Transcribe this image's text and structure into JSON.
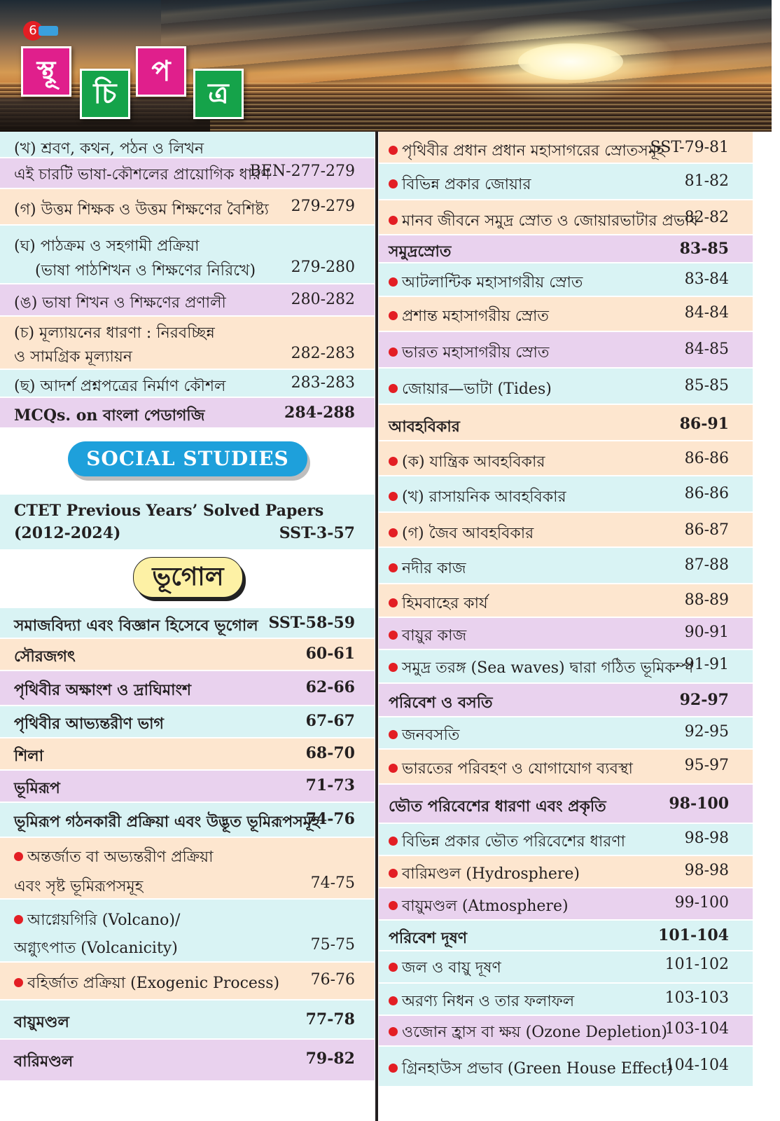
{
  "header": {
    "page_number": "6",
    "title_tiles": [
      "স্থূ",
      "চি",
      "প",
      "ত্র"
    ]
  },
  "left": {
    "rows_top": [
      {
        "text": "(খ) শ্রবণ, কথন, পঠন ও লিখন",
        "page": ""
      },
      {
        "text": "এই চারটি ভাষা-কৌশলের প্রায়োগিক ধারণ",
        "page": "BEN-277-279"
      },
      {
        "text": "(গ) উত্তম শিক্ষক ও উত্তম শিক্ষণের বৈশিষ্ট্য",
        "page": "279-279"
      },
      {
        "text": "(ঘ) পাঠক্রম ও সহগামী প্রক্রিয়া",
        "page": ""
      },
      {
        "text": "(ভাষা পাঠশিখন ও শিক্ষণের নিরিখে)",
        "page": "279-280"
      },
      {
        "text": "(ঙ) ভাষা শিখন ও শিক্ষণের প্রণালী",
        "page": "280-282"
      },
      {
        "text": "(চ) মূল্যায়নের ধারণা : নিরবচ্ছিন্ন",
        "page": ""
      },
      {
        "text": "ও সামগ্রিক মূল্যায়ন",
        "page": "282-283"
      },
      {
        "text": "(ছ) আদর্শ প্রশ্নপত্রের নির্মাণ কৌশল",
        "page": "283-283"
      },
      {
        "text": "MCQs. on বাংলা পেডাগজি",
        "page": "284-288"
      }
    ],
    "section_banner": "SOCIAL STUDIES",
    "ctet": {
      "line1": "CTET Previous Years’ Solved Papers",
      "line2": "(2012-2024)",
      "page": "SST-3-57"
    },
    "subject_banner": "ভূগোল",
    "rows_bottom": [
      {
        "text": "সমাজবিদ্যা এবং বিজ্ঞান হিসেবে ভূগোল",
        "page": "SST-58-59"
      },
      {
        "text": "সৌরজগৎ",
        "page": "60-61"
      },
      {
        "text": "পৃথিবীর অক্ষাংশ ও দ্রাঘিমাংশ",
        "page": "62-66"
      },
      {
        "text": "পৃথিবীর আভ্যন্তরীণ ভাগ",
        "page": "67-67"
      },
      {
        "text": "শিলা",
        "page": "68-70"
      },
      {
        "text": "ভূমিরূপ",
        "page": "71-73"
      },
      {
        "text": "ভূমিরূপ গঠনকারী প্রক্রিয়া এবং উদ্ভূত ভূমিরূপসমূহ",
        "page": "74-76"
      },
      {
        "text": "অন্তর্জাত বা অভ্যন্তরীণ প্রক্রিয়া",
        "page": ""
      },
      {
        "text": "এবং সৃষ্ট ভূমিরূপসমূহ",
        "page": "74-75"
      },
      {
        "text": "আগ্নেয়গিরি (Volcano)/",
        "page": ""
      },
      {
        "text": "অগ্ন্যুৎপাত (Volcanicity)",
        "page": "75-75"
      },
      {
        "text": "বহির্জাত প্রক্রিয়া (Exogenic Process)",
        "page": "76-76"
      },
      {
        "text": "বায়ুমণ্ডল",
        "page": "77-78"
      },
      {
        "text": "বারিমণ্ডল",
        "page": "79-82"
      }
    ]
  },
  "right": {
    "rows": [
      {
        "text": "পৃথিবীর প্রধান প্রধান মহাসাগরের স্রোতসমূহ",
        "page": "SST-79-81"
      },
      {
        "text": "বিভিন্ন প্রকার জোয়ার",
        "page": "81-82"
      },
      {
        "text": "মানব জীবনে সমুদ্র স্রোত ও জোয়ারভাটার প্রভাব",
        "page": "82-82"
      },
      {
        "text": "সমুদ্রস্রোত",
        "page": "83-85"
      },
      {
        "text": "আটলান্টিক মহাসাগরীয় স্রোত",
        "page": "83-84"
      },
      {
        "text": "প্রশান্ত মহাসাগরীয় স্রোত",
        "page": "84-84"
      },
      {
        "text": "ভারত মহাসাগরীয় স্রোত",
        "page": "84-85"
      },
      {
        "text": "জোয়ার—ভাটা (Tides)",
        "page": "85-85"
      },
      {
        "text": "আবহবিকার",
        "page": "86-91"
      },
      {
        "text": "(ক) যান্ত্রিক আবহবিকার",
        "page": "86-86"
      },
      {
        "text": "(খ) রাসায়নিক আবহবিকার",
        "page": "86-86"
      },
      {
        "text": "(গ) জৈব আবহবিকার",
        "page": "86-87"
      },
      {
        "text": "নদীর কাজ",
        "page": "87-88"
      },
      {
        "text": "হিমবাহের কার্য",
        "page": "88-89"
      },
      {
        "text": "বায়ুর কাজ",
        "page": "90-91"
      },
      {
        "text": "সমুদ্র তরঙ্গ (Sea waves) দ্বারা গঠিত ভূমিকম্প",
        "page": "91-91"
      },
      {
        "text": "পরিবেশ ও বসতি",
        "page": "92-97"
      },
      {
        "text": "জনবসতি",
        "page": "92-95"
      },
      {
        "text": "ভারতের পরিবহণ ও যোগাযোগ ব্যবস্থা",
        "page": "95-97"
      },
      {
        "text": "ভৌত পরিবেশের ধারণা এবং প্রকৃতি",
        "page": "98-100"
      },
      {
        "text": "বিভিন্ন প্রকার ভৌত পরিবেশের ধারণা",
        "page": "98-98"
      },
      {
        "text": "বারিমণ্ডল (Hydrosphere)",
        "page": "98-98"
      },
      {
        "text": "বায়ুমণ্ডল (Atmosphere)",
        "page": "99-100"
      },
      {
        "text": "পরিবেশ দূষণ",
        "page": "101-104"
      },
      {
        "text": "জল ও বায়ু দূষণ",
        "page": "101-102"
      },
      {
        "text": "অরণ্য নিধন ও তার ফলাফল",
        "page": "103-103"
      },
      {
        "text": "ওজোন হ্রাস বা ক্ষয় (Ozone Depletion)",
        "page": "103-104"
      },
      {
        "text": "গ্রিনহাউস প্রভাব (Green House Effect)",
        "page": "104-104"
      }
    ]
  },
  "colors": {
    "cyan": "#d9f3f4",
    "peach": "#fde6cf",
    "lavender": "#e9d2ee",
    "bullet": "#e31e24",
    "banner": "#1ea0db",
    "tile_magenta": "#e01f8c",
    "tile_green": "#15a34a"
  }
}
